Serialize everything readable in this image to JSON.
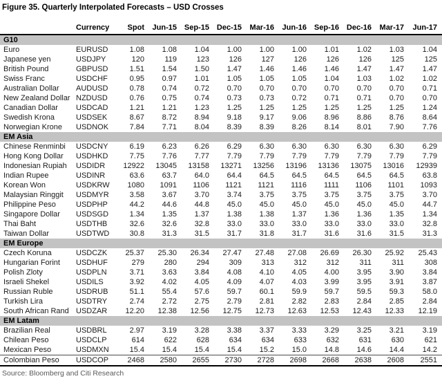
{
  "figure": {
    "title": "Figure 35. Quarterly Interpolated Forecasts – USD Crosses",
    "source": "Source: Bloomberg and Citi Research"
  },
  "colors": {
    "section_band": "#c3c3c3",
    "rule": "#000000",
    "source_text": "#595959"
  },
  "table": {
    "headers": [
      "",
      "Currency",
      "Spot",
      "Jun-15",
      "Sep-15",
      "Dec-15",
      "Mar-16",
      "Jun-16",
      "Sep-16",
      "Dec-16",
      "Mar-17",
      "Jun-17"
    ],
    "sections": [
      {
        "label": "G10",
        "rows": [
          {
            "name": "Euro",
            "code": "EURUSD",
            "values": [
              "1.08",
              "1.08",
              "1.04",
              "1.00",
              "1.00",
              "1.00",
              "1.01",
              "1.02",
              "1.03",
              "1.04"
            ]
          },
          {
            "name": "Japanese yen",
            "code": "USDJPY",
            "values": [
              "120",
              "119",
              "123",
              "126",
              "127",
              "126",
              "126",
              "126",
              "125",
              "125"
            ]
          },
          {
            "name": "British Pound",
            "code": "GBPUSD",
            "values": [
              "1.51",
              "1.54",
              "1.50",
              "1.47",
              "1.46",
              "1.46",
              "1.46",
              "1.47",
              "1.47",
              "1.47"
            ]
          },
          {
            "name": "Swiss Franc",
            "code": "USDCHF",
            "values": [
              "0.95",
              "0.97",
              "1.01",
              "1.05",
              "1.05",
              "1.05",
              "1.04",
              "1.03",
              "1.02",
              "1.02"
            ]
          },
          {
            "name": "Australian Dollar",
            "code": "AUDUSD",
            "values": [
              "0.78",
              "0.74",
              "0.72",
              "0.70",
              "0.70",
              "0.70",
              "0.70",
              "0.70",
              "0.70",
              "0.71"
            ]
          },
          {
            "name": "New Zealand Dollar",
            "code": "NZDUSD",
            "values": [
              "0.76",
              "0.75",
              "0.74",
              "0.73",
              "0.73",
              "0.72",
              "0.71",
              "0.71",
              "0.70",
              "0.70"
            ]
          },
          {
            "name": "Canadian Dollar",
            "code": "USDCAD",
            "values": [
              "1.21",
              "1.21",
              "1.23",
              "1.25",
              "1.25",
              "1.25",
              "1.25",
              "1.25",
              "1.25",
              "1.24"
            ]
          },
          {
            "name": "Swedish Krona",
            "code": "USDSEK",
            "values": [
              "8.67",
              "8.72",
              "8.94",
              "9.18",
              "9.17",
              "9.06",
              "8.96",
              "8.86",
              "8.76",
              "8.64"
            ]
          },
          {
            "name": "Norwegian Krone",
            "code": "USDNOK",
            "values": [
              "7.84",
              "7.71",
              "8.04",
              "8.39",
              "8.39",
              "8.26",
              "8.14",
              "8.01",
              "7.90",
              "7.76"
            ]
          }
        ]
      },
      {
        "label": "EM Asia",
        "rows": [
          {
            "name": "Chinese Renminbi",
            "code": "USDCNY",
            "values": [
              "6.19",
              "6.23",
              "6.26",
              "6.29",
              "6.30",
              "6.30",
              "6.30",
              "6.30",
              "6.30",
              "6.29"
            ]
          },
          {
            "name": "Hong Kong Dollar",
            "code": "USDHKD",
            "values": [
              "7.75",
              "7.76",
              "7.77",
              "7.79",
              "7.79",
              "7.79",
              "7.79",
              "7.79",
              "7.79",
              "7.79"
            ]
          },
          {
            "name": "Indonesian Rupiah",
            "code": "USDIDR",
            "values": [
              "12922",
              "13045",
              "13158",
              "13271",
              "13256",
              "13196",
              "13136",
              "13075",
              "13016",
              "12939"
            ]
          },
          {
            "name": "Indian Rupee",
            "code": "USDINR",
            "values": [
              "63.6",
              "63.7",
              "64.0",
              "64.4",
              "64.5",
              "64.5",
              "64.5",
              "64.5",
              "64.5",
              "63.8"
            ]
          },
          {
            "name": "Korean Won",
            "code": "USDKRW",
            "values": [
              "1080",
              "1091",
              "1106",
              "1121",
              "1121",
              "1116",
              "1111",
              "1106",
              "1101",
              "1093"
            ]
          },
          {
            "name": "Malaysian Ringgit",
            "code": "USDMYR",
            "values": [
              "3.58",
              "3.67",
              "3.70",
              "3.74",
              "3.75",
              "3.75",
              "3.75",
              "3.75",
              "3.75",
              "3.70"
            ]
          },
          {
            "name": "Philippine Peso",
            "code": "USDPHP",
            "values": [
              "44.2",
              "44.6",
              "44.8",
              "45.0",
              "45.0",
              "45.0",
              "45.0",
              "45.0",
              "45.0",
              "44.7"
            ]
          },
          {
            "name": "Singapore Dollar",
            "code": "USDSGD",
            "values": [
              "1.34",
              "1.35",
              "1.37",
              "1.38",
              "1.38",
              "1.37",
              "1.36",
              "1.36",
              "1.35",
              "1.34"
            ]
          },
          {
            "name": "Thai Baht",
            "code": "USDTHB",
            "values": [
              "32.6",
              "32.6",
              "32.8",
              "33.0",
              "33.0",
              "33.0",
              "33.0",
              "33.0",
              "33.0",
              "32.8"
            ]
          },
          {
            "name": "Taiwan Dollar",
            "code": "USDTWD",
            "values": [
              "30.8",
              "31.3",
              "31.5",
              "31.7",
              "31.8",
              "31.7",
              "31.6",
              "31.6",
              "31.5",
              "31.3"
            ]
          }
        ]
      },
      {
        "label": "EM Europe",
        "rows": [
          {
            "name": "Czech Koruna",
            "code": "USDCZK",
            "values": [
              "25.37",
              "25.30",
              "26.34",
              "27.47",
              "27.48",
              "27.08",
              "26.69",
              "26.30",
              "25.92",
              "25.43"
            ]
          },
          {
            "name": "Hungarian Forint",
            "code": "USDHUF",
            "values": [
              "279",
              "280",
              "294",
              "309",
              "313",
              "312",
              "312",
              "311",
              "311",
              "308"
            ]
          },
          {
            "name": "Polish Zloty",
            "code": "USDPLN",
            "values": [
              "3.71",
              "3.63",
              "3.84",
              "4.08",
              "4.10",
              "4.05",
              "4.00",
              "3.95",
              "3.90",
              "3.84"
            ]
          },
          {
            "name": "Israeli Shekel",
            "code": "USDILS",
            "values": [
              "3.92",
              "4.02",
              "4.05",
              "4.09",
              "4.07",
              "4.03",
              "3.99",
              "3.95",
              "3.91",
              "3.87"
            ]
          },
          {
            "name": "Russian Ruble",
            "code": "USDRUB",
            "values": [
              "51.1",
              "55.4",
              "57.6",
              "59.7",
              "60.1",
              "59.9",
              "59.7",
              "59.5",
              "59.3",
              "58.0"
            ]
          },
          {
            "name": "Turkish Lira",
            "code": "USDTRY",
            "values": [
              "2.74",
              "2.72",
              "2.75",
              "2.79",
              "2.81",
              "2.82",
              "2.83",
              "2.84",
              "2.85",
              "2.84"
            ]
          },
          {
            "name": "South African Rand",
            "code": "USDZAR",
            "values": [
              "12.20",
              "12.38",
              "12.56",
              "12.75",
              "12.73",
              "12.63",
              "12.53",
              "12.43",
              "12.33",
              "12.19"
            ]
          }
        ]
      },
      {
        "label": "EM Latam",
        "rows": [
          {
            "name": "Brazilian Real",
            "code": "USDBRL",
            "values": [
              "2.97",
              "3.19",
              "3.28",
              "3.38",
              "3.37",
              "3.33",
              "3.29",
              "3.25",
              "3.21",
              "3.19"
            ]
          },
          {
            "name": "Chilean Peso",
            "code": "USDCLP",
            "values": [
              "614",
              "622",
              "628",
              "634",
              "634",
              "633",
              "632",
              "631",
              "630",
              "621"
            ]
          },
          {
            "name": "Mexican Peso",
            "code": "USDMXN",
            "values": [
              "15.4",
              "15.4",
              "15.4",
              "15.4",
              "15.2",
              "15.0",
              "14.8",
              "14.6",
              "14.4",
              "14.2"
            ]
          },
          {
            "name": "Colombian Peso",
            "code": "USDCOP",
            "values": [
              "2468",
              "2580",
              "2655",
              "2730",
              "2728",
              "2698",
              "2668",
              "2638",
              "2608",
              "2551"
            ]
          }
        ]
      }
    ]
  }
}
